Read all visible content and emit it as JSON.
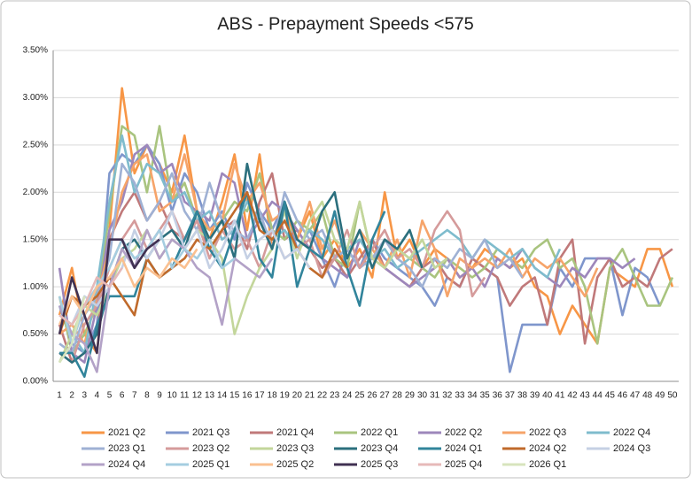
{
  "chart_data": {
    "type": "line",
    "title": "ABS - Prepayment Speeds <575",
    "categories": [
      1,
      2,
      3,
      4,
      5,
      6,
      7,
      8,
      9,
      10,
      11,
      12,
      13,
      14,
      15,
      16,
      17,
      18,
      19,
      20,
      21,
      22,
      23,
      24,
      25,
      26,
      27,
      28,
      29,
      30,
      31,
      32,
      33,
      34,
      35,
      36,
      37,
      38,
      39,
      40,
      41,
      42,
      43,
      44,
      45,
      46,
      47,
      48,
      49,
      50
    ],
    "ylim": [
      0,
      3.5
    ],
    "yticks": [
      {
        "value": 0,
        "label": "0.00%"
      },
      {
        "value": 0.5,
        "label": "0.50%"
      },
      {
        "value": 1,
        "label": "1.00%"
      },
      {
        "value": 1.5,
        "label": "1.50%"
      },
      {
        "value": 2,
        "label": "2.00%"
      },
      {
        "value": 2.5,
        "label": "2.50%"
      },
      {
        "value": 3,
        "label": "3.00%"
      },
      {
        "value": 3.5,
        "label": "3.50%"
      }
    ],
    "grid": true,
    "legend": "bottom",
    "series": [
      {
        "name": "2021 Q2",
        "color": "#f79646",
        "values": [
          0.7,
          1.2,
          0.5,
          0.3,
          1.6,
          3.1,
          2.2,
          2.5,
          2.3,
          2.0,
          2.6,
          1.8,
          1.5,
          1.9,
          2.4,
          1.6,
          2.4,
          1.4,
          1.9,
          1.5,
          1.8,
          1.3,
          1.5,
          1.2,
          1.4,
          1.1,
          2.0,
          1.3,
          1.5,
          1.2,
          1.4,
          1.3,
          1.1,
          1.2,
          1.4,
          1.3,
          1.2,
          1.3,
          1.0,
          0.9,
          0.5,
          0.8,
          0.6,
          0.4,
          1.2,
          1.1,
          1.0,
          1.4,
          1.4,
          1.0
        ]
      },
      {
        "name": "2021 Q3",
        "color": "#7f96cc",
        "values": [
          0.8,
          0.4,
          0.3,
          0.6,
          2.2,
          2.4,
          2.3,
          2.5,
          2.3,
          1.8,
          2.2,
          2.0,
          1.6,
          1.8,
          1.5,
          2.1,
          1.8,
          1.6,
          1.9,
          1.4,
          1.6,
          1.3,
          1.0,
          1.4,
          1.2,
          1.5,
          1.3,
          1.2,
          1.1,
          1.0,
          0.8,
          1.1,
          1.0,
          1.3,
          1.2,
          1.1,
          0.1,
          0.6,
          0.6,
          0.6,
          1.2,
          1.0,
          1.3,
          1.3,
          1.3,
          0.7,
          1.2,
          1.1,
          0.8,
          null
        ]
      },
      {
        "name": "2021 Q4",
        "color": "#c0797a",
        "values": [
          0.6,
          0.2,
          0.3,
          0.5,
          1.5,
          1.8,
          2.0,
          1.7,
          1.9,
          1.6,
          1.5,
          1.7,
          1.4,
          1.6,
          1.7,
          1.4,
          1.9,
          2.2,
          1.5,
          1.6,
          1.4,
          1.2,
          1.3,
          1.1,
          1.3,
          1.5,
          1.2,
          1.1,
          1.0,
          1.2,
          1.3,
          1.1,
          1.0,
          1.3,
          1.2,
          1.1,
          0.8,
          1.0,
          1.1,
          0.6,
          1.3,
          1.5,
          0.4,
          1.1,
          1.3,
          1.0,
          1.1,
          1.0,
          1.3,
          1.4
        ]
      },
      {
        "name": "2022 Q1",
        "color": "#a9c47f",
        "values": [
          0.9,
          0.3,
          0.5,
          0.8,
          1.8,
          2.7,
          2.6,
          2.0,
          2.7,
          1.9,
          2.1,
          1.7,
          1.6,
          1.7,
          1.9,
          1.8,
          2.2,
          1.6,
          1.5,
          1.7,
          1.6,
          1.8,
          1.3,
          1.2,
          1.9,
          1.3,
          1.5,
          1.4,
          1.3,
          1.2,
          1.1,
          1.3,
          1.2,
          1.1,
          1.2,
          1.4,
          1.3,
          1.2,
          1.4,
          1.5,
          1.2,
          1.3,
          1.0,
          0.4,
          1.2,
          1.4,
          1.1,
          0.8,
          0.8,
          1.1
        ]
      },
      {
        "name": "2022 Q2",
        "color": "#9d87bb",
        "values": [
          1.2,
          0.3,
          0.2,
          0.8,
          1.6,
          1.9,
          2.4,
          2.5,
          2.2,
          2.3,
          1.9,
          1.8,
          1.7,
          2.2,
          2.1,
          1.5,
          1.7,
          1.9,
          1.8,
          1.6,
          1.4,
          1.3,
          1.2,
          1.1,
          1.5,
          1.3,
          1.2,
          1.1,
          1.0,
          1.1,
          1.2,
          1.3,
          1.1,
          1.2,
          1.0,
          1.3,
          1.2,
          1.4,
          1.2,
          1.1,
          1.0,
          1.2,
          1.1,
          1.3,
          1.3,
          1.2,
          1.3,
          null,
          null,
          null
        ]
      },
      {
        "name": "2022 Q3",
        "color": "#f6a46a",
        "values": [
          0.5,
          0.6,
          0.4,
          0.9,
          1.4,
          2.0,
          2.3,
          2.4,
          1.8,
          1.9,
          2.4,
          1.8,
          1.6,
          1.7,
          2.3,
          1.9,
          2.1,
          1.7,
          1.8,
          1.5,
          1.9,
          1.4,
          1.7,
          1.3,
          1.6,
          1.4,
          1.2,
          1.5,
          1.1,
          1.7,
          1.4,
          0.9,
          1.3,
          1.2,
          1.3,
          1.2,
          1.4,
          1.1,
          1.3,
          1.2,
          1.3,
          1.1,
          0.9,
          1.2,
          null,
          null,
          null,
          null,
          null,
          null
        ]
      },
      {
        "name": "2022 Q4",
        "color": "#7fbccd",
        "values": [
          0.8,
          0.5,
          0.3,
          1.0,
          1.9,
          2.6,
          2.0,
          2.3,
          2.2,
          1.9,
          2.0,
          1.7,
          1.8,
          1.5,
          1.6,
          1.9,
          1.7,
          1.5,
          1.6,
          1.4,
          1.6,
          1.5,
          1.3,
          1.4,
          1.5,
          1.3,
          1.4,
          1.2,
          1.3,
          1.4,
          1.5,
          1.6,
          1.5,
          1.3,
          1.5,
          1.4,
          1.3,
          1.4,
          1.2,
          1.1,
          1.4,
          null,
          null,
          null,
          null,
          null,
          null,
          null,
          null,
          null
        ]
      },
      {
        "name": "2023 Q1",
        "color": "#9fb1d4",
        "values": [
          0.4,
          0.3,
          0.7,
          0.9,
          1.3,
          2.3,
          2.1,
          1.7,
          1.9,
          2.2,
          1.8,
          1.6,
          2.1,
          1.7,
          1.6,
          1.5,
          1.8,
          1.4,
          2.0,
          1.7,
          1.5,
          1.6,
          1.3,
          1.4,
          1.2,
          1.3,
          1.5,
          1.3,
          1.2,
          1.0,
          1.3,
          1.2,
          1.4,
          1.3,
          1.5,
          1.2,
          1.3,
          1.1,
          null,
          null,
          null,
          null,
          null,
          null,
          null,
          null,
          null,
          null,
          null,
          null
        ]
      },
      {
        "name": "2023 Q2",
        "color": "#d59b9b",
        "values": [
          0.3,
          0.2,
          0.6,
          0.8,
          1.2,
          1.5,
          1.7,
          1.4,
          1.6,
          1.8,
          1.5,
          1.7,
          1.3,
          1.6,
          1.4,
          1.5,
          1.2,
          1.6,
          1.3,
          1.4,
          1.5,
          1.1,
          1.3,
          1.6,
          1.2,
          1.4,
          1.6,
          1.3,
          1.4,
          1.2,
          1.6,
          1.8,
          1.6,
          0.9,
          1.1,
          null,
          null,
          null,
          null,
          null,
          null,
          null,
          null,
          null,
          null,
          null,
          null,
          null,
          null,
          null
        ]
      },
      {
        "name": "2023 Q3",
        "color": "#c3d69b",
        "values": [
          0.2,
          0.5,
          0.8,
          0.7,
          1.0,
          1.3,
          1.4,
          1.6,
          1.3,
          1.5,
          1.4,
          1.6,
          1.5,
          1.3,
          0.5,
          0.9,
          1.2,
          1.4,
          1.8,
          1.3,
          1.7,
          1.9,
          1.5,
          1.4,
          1.9,
          1.3,
          1.2,
          1.4,
          1.3,
          1.5,
          1.2,
          1.3,
          null,
          null,
          null,
          null,
          null,
          null,
          null,
          null,
          null,
          null,
          null,
          null,
          null,
          null,
          null,
          null,
          null,
          null
        ]
      },
      {
        "name": "2023 Q4",
        "color": "#2b6f7d",
        "values": [
          0.3,
          0.2,
          0.3,
          0.5,
          1.0,
          1.4,
          1.5,
          1.3,
          1.5,
          1.6,
          1.4,
          1.8,
          1.5,
          1.7,
          1.3,
          2.3,
          1.7,
          1.4,
          1.9,
          1.5,
          1.4,
          1.8,
          2.0,
          1.3,
          1.6,
          1.2,
          1.5,
          1.4,
          1.6,
          1.2,
          null,
          null,
          null,
          null,
          null,
          null,
          null,
          null,
          null,
          null,
          null,
          null,
          null,
          null,
          null,
          null,
          null,
          null,
          null,
          null
        ]
      },
      {
        "name": "2024 Q1",
        "color": "#31849b",
        "values": [
          0.3,
          0.3,
          0.05,
          0.6,
          0.9,
          0.9,
          0.9,
          1.3,
          1.1,
          1.2,
          1.5,
          1.8,
          1.4,
          1.2,
          1.6,
          2.0,
          1.3,
          1.1,
          1.9,
          1.0,
          1.4,
          1.3,
          1.8,
          1.2,
          0.8,
          1.5,
          1.8,
          null,
          null,
          null,
          null,
          null,
          null,
          null,
          null,
          null,
          null,
          null,
          null,
          null,
          null,
          null,
          null,
          null,
          null,
          null,
          null,
          null,
          null,
          null
        ]
      },
      {
        "name": "2024 Q2",
        "color": "#c06a2b",
        "values": [
          0.5,
          0.9,
          0.8,
          0.9,
          1.1,
          0.9,
          0.7,
          1.3,
          1.1,
          1.2,
          1.3,
          1.5,
          1.4,
          1.6,
          1.8,
          2.0,
          1.6,
          1.5,
          1.7,
          1.4,
          1.2,
          1.1,
          1.4,
          1.2,
          null,
          null,
          null,
          null,
          null,
          null,
          null,
          null,
          null,
          null,
          null,
          null,
          null,
          null,
          null,
          null,
          null,
          null,
          null,
          null,
          null,
          null,
          null,
          null,
          null,
          null
        ]
      },
      {
        "name": "2024 Q3",
        "color": "#c5d0e4",
        "values": [
          0.7,
          0.6,
          0.9,
          0.8,
          1.0,
          1.2,
          1.6,
          1.3,
          1.5,
          1.8,
          1.4,
          1.6,
          1.2,
          1.4,
          1.7,
          1.3,
          1.5,
          1.6,
          1.3,
          1.4,
          1.2,
          null,
          null,
          null,
          null,
          null,
          null,
          null,
          null,
          null,
          null,
          null,
          null,
          null,
          null,
          null,
          null,
          null,
          null,
          null,
          null,
          null,
          null,
          null,
          null,
          null,
          null,
          null,
          null,
          null
        ]
      },
      {
        "name": "2024 Q4",
        "color": "#b3a2c7",
        "values": [
          0.8,
          0.5,
          0.4,
          0.1,
          1.0,
          1.4,
          1.2,
          1.6,
          1.3,
          1.5,
          1.4,
          1.2,
          1.1,
          0.6,
          1.3,
          1.2,
          1.1,
          1.3,
          null,
          null,
          null,
          null,
          null,
          null,
          null,
          null,
          null,
          null,
          null,
          null,
          null,
          null,
          null,
          null,
          null,
          null,
          null,
          null,
          null,
          null,
          null,
          null,
          null,
          null,
          null,
          null,
          null,
          null,
          null,
          null
        ]
      },
      {
        "name": "2025 Q1",
        "color": "#a5cde0",
        "values": [
          0.9,
          0.4,
          0.8,
          1.0,
          1.2,
          1.5,
          1.3,
          1.4,
          1.6,
          1.2,
          1.4,
          1.3,
          1.5,
          1.2,
          1.3,
          null,
          null,
          null,
          null,
          null,
          null,
          null,
          null,
          null,
          null,
          null,
          null,
          null,
          null,
          null,
          null,
          null,
          null,
          null,
          null,
          null,
          null,
          null,
          null,
          null,
          null,
          null,
          null,
          null,
          null,
          null,
          null,
          null,
          null,
          null
        ]
      },
      {
        "name": "2025 Q2",
        "color": "#fac090",
        "values": [
          0.6,
          0.9,
          0.7,
          1.0,
          1.1,
          1.3,
          1.0,
          1.2,
          1.1,
          1.3,
          1.2,
          1.4,
          null,
          null,
          null,
          null,
          null,
          null,
          null,
          null,
          null,
          null,
          null,
          null,
          null,
          null,
          null,
          null,
          null,
          null,
          null,
          null,
          null,
          null,
          null,
          null,
          null,
          null,
          null,
          null,
          null,
          null,
          null,
          null,
          null,
          null,
          null,
          null,
          null,
          null
        ]
      },
      {
        "name": "2025 Q3",
        "color": "#403152",
        "values": [
          0.5,
          1.1,
          0.7,
          0.3,
          1.5,
          1.5,
          1.2,
          1.4,
          1.5,
          null,
          null,
          null,
          null,
          null,
          null,
          null,
          null,
          null,
          null,
          null,
          null,
          null,
          null,
          null,
          null,
          null,
          null,
          null,
          null,
          null,
          null,
          null,
          null,
          null,
          null,
          null,
          null,
          null,
          null,
          null,
          null,
          null,
          null,
          null,
          null,
          null,
          null,
          null,
          null,
          null
        ]
      },
      {
        "name": "2025 Q4",
        "color": "#e6b9b8",
        "values": [
          0.7,
          0.6,
          0.8,
          1.1,
          1.0,
          1.2,
          null,
          null,
          null,
          null,
          null,
          null,
          null,
          null,
          null,
          null,
          null,
          null,
          null,
          null,
          null,
          null,
          null,
          null,
          null,
          null,
          null,
          null,
          null,
          null,
          null,
          null,
          null,
          null,
          null,
          null,
          null,
          null,
          null,
          null,
          null,
          null,
          null,
          null,
          null,
          null,
          null,
          null,
          null,
          null
        ]
      },
      {
        "name": "2026 Q1",
        "color": "#d7e4bd",
        "values": [
          0.2,
          0.4,
          0.9,
          null,
          null,
          null,
          null,
          null,
          null,
          null,
          null,
          null,
          null,
          null,
          null,
          null,
          null,
          null,
          null,
          null,
          null,
          null,
          null,
          null,
          null,
          null,
          null,
          null,
          null,
          null,
          null,
          null,
          null,
          null,
          null,
          null,
          null,
          null,
          null,
          null,
          null,
          null,
          null,
          null,
          null,
          null,
          null,
          null,
          null,
          null
        ]
      }
    ]
  }
}
